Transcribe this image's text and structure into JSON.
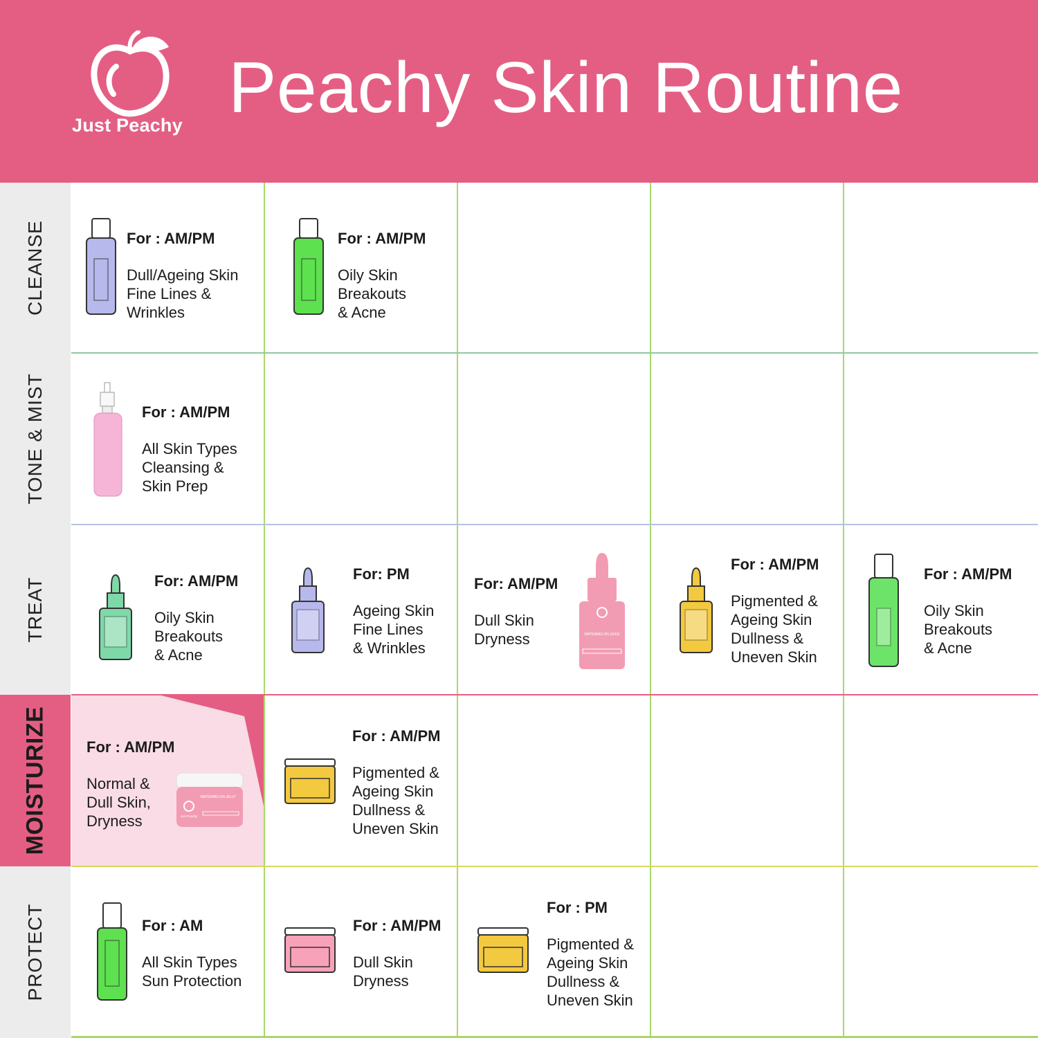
{
  "header": {
    "brand": "Just Peachy",
    "title": "Peachy Skin Routine",
    "color": "#e45e83"
  },
  "rows": [
    {
      "label": "CLEANSE",
      "line_color": "#8ec9a0",
      "cells": [
        {
          "for": "For : AM/PM",
          "lines": [
            "Dull/Ageing Skin",
            "Fine Lines &",
            "Wrinkles"
          ],
          "product": "pump-bottle",
          "color": "#b7b8ec"
        },
        {
          "for": "For : AM/PM",
          "lines": [
            "Oily Skin",
            "Breakouts",
            "& Acne"
          ],
          "product": "pump-bottle",
          "color": "#5de14f"
        }
      ]
    },
    {
      "label": "TONE & MIST",
      "line_color": "#b7c0e4",
      "cells": [
        {
          "for": "For : AM/PM",
          "lines": [
            "All Skin Types",
            "Cleansing &",
            "Skin Prep"
          ],
          "product": "mist-bottle",
          "color": "#f6b4d6"
        }
      ]
    },
    {
      "label": "TREAT",
      "line_color": "#e45e83",
      "cells": [
        {
          "for": "For: AM/PM",
          "lines": [
            "Oily Skin",
            "Breakouts",
            "&  Acne"
          ],
          "product": "dropper-bottle",
          "color": "#7fd8a8"
        },
        {
          "for": "For: PM",
          "lines": [
            "Ageing Skin",
            "Fine Lines",
            "& Wrinkles"
          ],
          "product": "dropper-bottle",
          "color": "#b7b8ec"
        },
        {
          "for": "For: AM/PM",
          "lines": [
            "Dull Skin",
            "Dryness"
          ],
          "product": "serum-box",
          "color": "#f29cb4",
          "product_label": "WATERMELON JUICE"
        },
        {
          "for": "For : AM/PM",
          "lines": [
            "Pigmented &",
            "Ageing Skin",
            "Dullness &",
            "Uneven Skin"
          ],
          "product": "dropper-bottle",
          "color": "#f3c93f"
        },
        {
          "for": "For : AM/PM",
          "lines": [
            "Oily Skin",
            "Breakouts",
            "& Acne"
          ],
          "product": "pump-bottle",
          "color": "#6de36a"
        }
      ]
    },
    {
      "label": "MOISTURIZE",
      "active": true,
      "line_color": "#d8d860",
      "cells": [
        {
          "for": "For : AM/PM",
          "lines": [
            "Normal &",
            "Dull Skin,",
            "Dryness"
          ],
          "product": "jelly-jar",
          "color": "#f29cb4",
          "product_label": "WATERMELON JELLY"
        },
        {
          "for": "For : AM/PM",
          "lines": [
            "Pigmented &",
            "Ageing Skin",
            "Dullness &",
            "Uneven Skin"
          ],
          "product": "jar",
          "color": "#f3c93f"
        }
      ]
    },
    {
      "label": "PROTECT",
      "line_color": "#a8d86a",
      "cells": [
        {
          "for": "For : AM",
          "lines": [
            "All Skin Types",
            "Sun Protection"
          ],
          "product": "pump-bottle",
          "color": "#5de14f"
        },
        {
          "for": "For : AM/PM",
          "lines": [
            "Dull Skin",
            "Dryness"
          ],
          "product": "jar",
          "color": "#f8a2b9"
        },
        {
          "for": "For : PM",
          "lines": [
            "Pigmented &",
            "Ageing Skin",
            "Dullness &",
            "Uneven Skin"
          ],
          "product": "jar",
          "color": "#f3c93f"
        }
      ]
    }
  ],
  "grid_vertical_color": "#a8d86a",
  "jar_label_brand": "Just Peachy"
}
